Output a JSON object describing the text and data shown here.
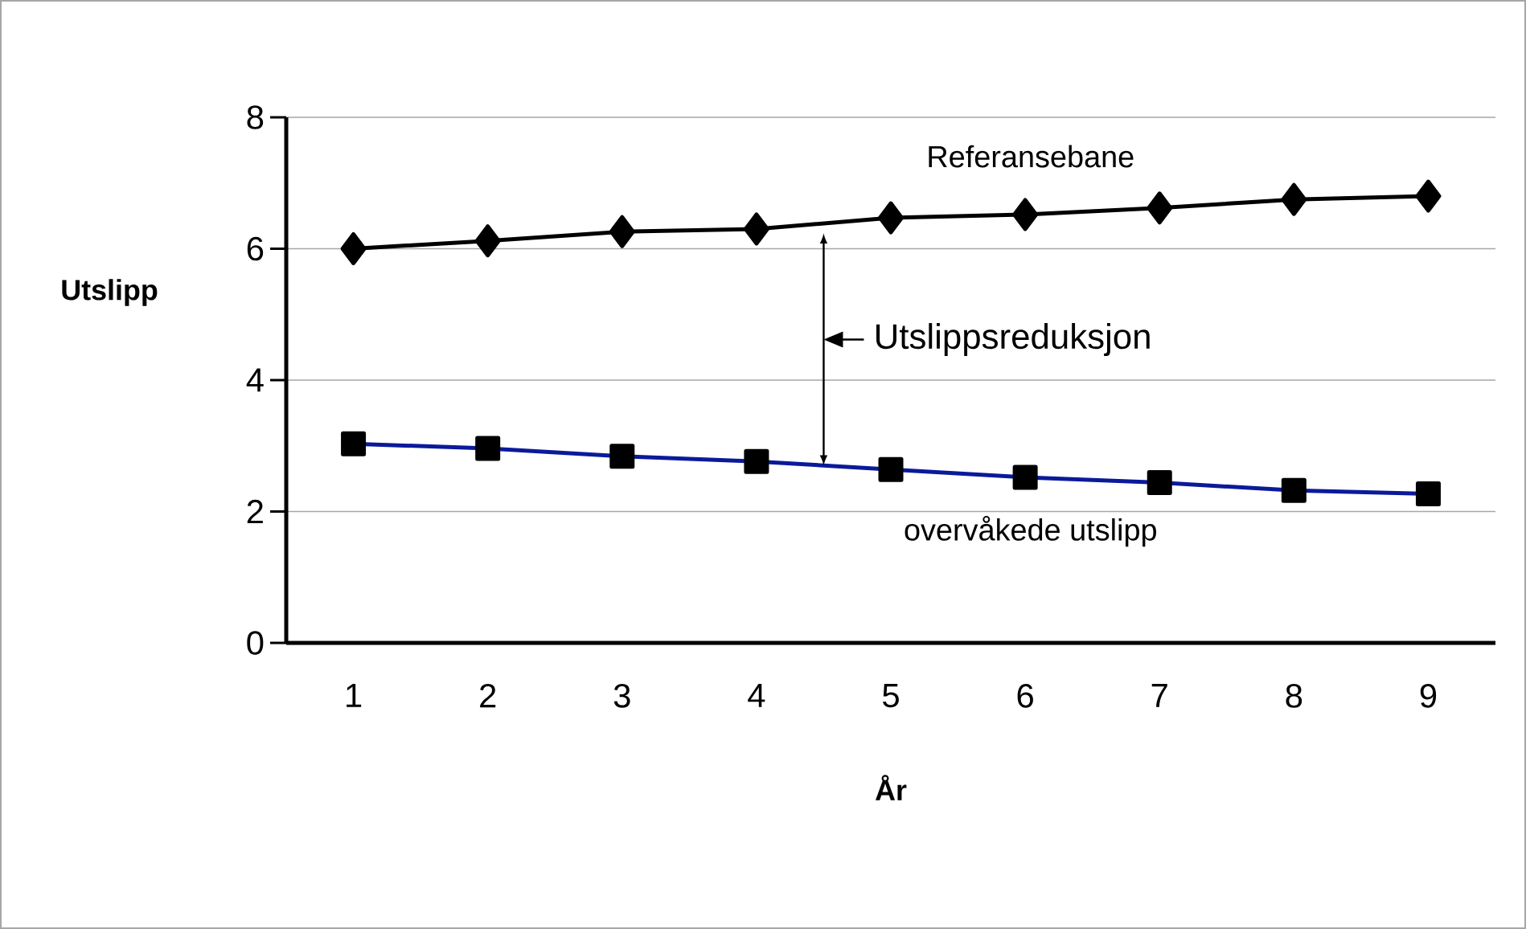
{
  "chart_data": {
    "type": "line",
    "xlabel": "År",
    "ylabel": "Utslipp",
    "categories": [
      "1",
      "2",
      "3",
      "4",
      "5",
      "6",
      "7",
      "8",
      "9"
    ],
    "series": [
      {
        "name": "Referansebane",
        "color": "#000000",
        "marker": "diamond",
        "values": [
          6.0,
          6.12,
          6.26,
          6.3,
          6.47,
          6.52,
          6.62,
          6.75,
          6.8
        ]
      },
      {
        "name": "overvåkede utslipp",
        "color": "#0a1a9a",
        "marker": "square",
        "values": [
          3.03,
          2.96,
          2.84,
          2.76,
          2.64,
          2.52,
          2.44,
          2.32,
          2.27
        ]
      }
    ],
    "ylim": [
      0,
      8
    ],
    "yticks": [
      0,
      2,
      4,
      6,
      8
    ],
    "grid": "y",
    "legend": false,
    "line_style": "solid",
    "annotations": [
      "Utslippsreduksjon"
    ]
  }
}
